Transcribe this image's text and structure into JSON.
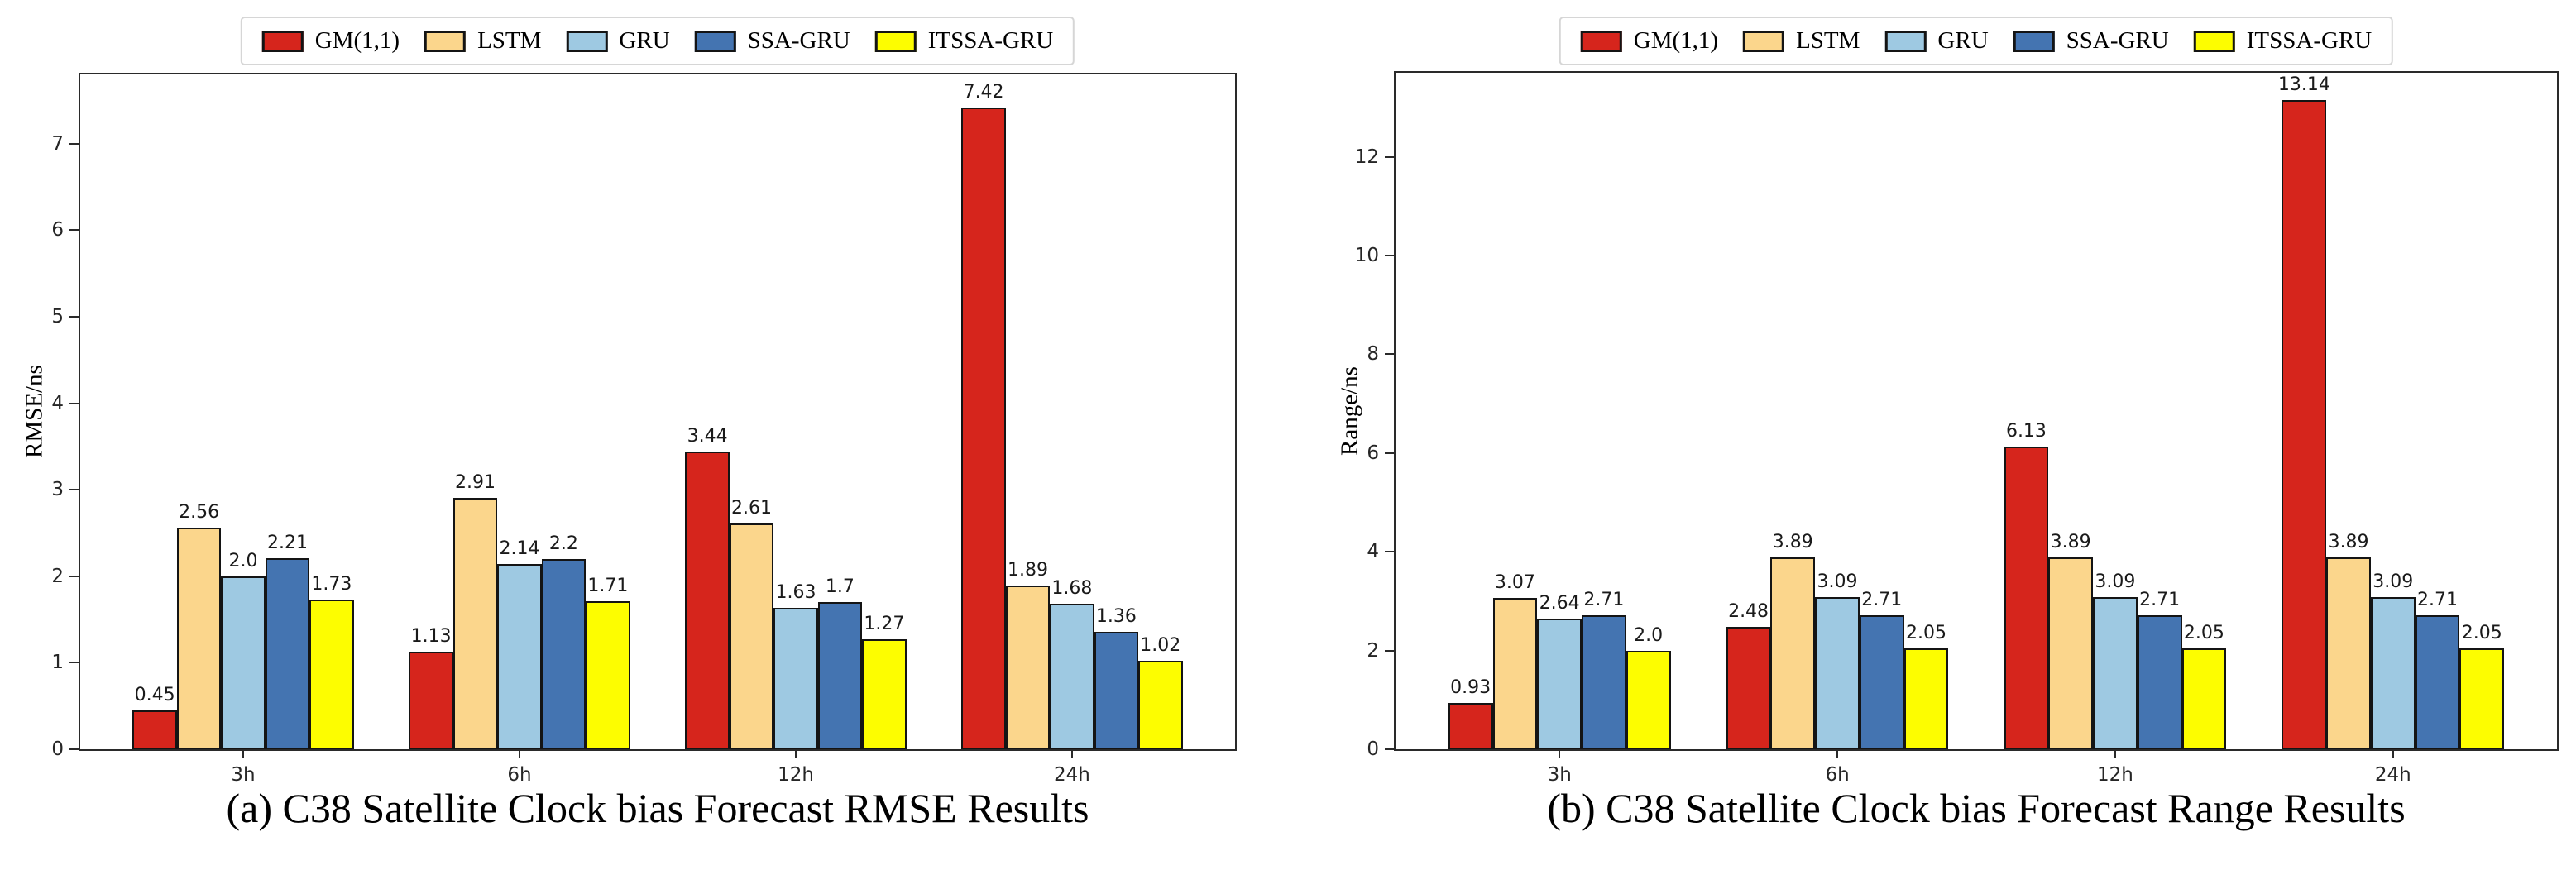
{
  "page": {
    "background": "#ffffff"
  },
  "chart_data": [
    {
      "type": "bar",
      "panel_label": "a",
      "caption": "(a) C38 Satellite Clock bias Forecast RMSE Results",
      "ylabel": "RMSE/ns",
      "xlabel": "",
      "categories": [
        "3h",
        "6h",
        "12h",
        "24h"
      ],
      "yticks": [
        0,
        1,
        2,
        3,
        4,
        5,
        6,
        7
      ],
      "ylim": [
        0,
        7.8
      ],
      "grid": false,
      "legend_position": "top center",
      "series": [
        {
          "name": "GM(1,1)",
          "color": "#d6251c",
          "values": [
            0.45,
            1.13,
            3.44,
            7.42
          ],
          "labels": [
            "0.45",
            "1.13",
            "3.44",
            "7.42"
          ]
        },
        {
          "name": "LSTM",
          "color": "#fbd68c",
          "values": [
            2.56,
            2.91,
            2.61,
            1.89
          ],
          "labels": [
            "2.56",
            "2.91",
            "2.61",
            "1.89"
          ]
        },
        {
          "name": "GRU",
          "color": "#9ec9e2",
          "values": [
            2.0,
            2.14,
            1.63,
            1.68
          ],
          "labels": [
            "2.0",
            "2.14",
            "1.63",
            "1.68"
          ]
        },
        {
          "name": "SSA-GRU",
          "color": "#4474b1",
          "values": [
            2.21,
            2.2,
            1.7,
            1.36
          ],
          "labels": [
            "2.21",
            "2.2",
            "1.7",
            "1.36"
          ]
        },
        {
          "name": "ITSSA-GRU",
          "color": "#fdfd00",
          "values": [
            1.73,
            1.71,
            1.27,
            1.02
          ],
          "labels": [
            "1.73",
            "1.71",
            "1.27",
            "1.02"
          ]
        }
      ]
    },
    {
      "type": "bar",
      "panel_label": "b",
      "caption": "(b) C38 Satellite Clock bias Forecast Range Results",
      "ylabel": "Range/ns",
      "xlabel": "",
      "categories": [
        "3h",
        "6h",
        "12h",
        "24h"
      ],
      "yticks": [
        0,
        2,
        4,
        6,
        8,
        10,
        12
      ],
      "ylim": [
        0,
        13.7
      ],
      "grid": false,
      "legend_position": "top center",
      "series": [
        {
          "name": "GM(1,1)",
          "color": "#d6251c",
          "values": [
            0.93,
            2.48,
            6.13,
            13.14
          ],
          "labels": [
            "0.93",
            "2.48",
            "6.13",
            "13.14"
          ]
        },
        {
          "name": "LSTM",
          "color": "#fbd68c",
          "values": [
            3.07,
            3.89,
            3.89,
            3.89
          ],
          "labels": [
            "3.07",
            "3.89",
            "3.89",
            "3.89"
          ]
        },
        {
          "name": "GRU",
          "color": "#9ec9e2",
          "values": [
            2.64,
            3.09,
            3.09,
            3.09
          ],
          "labels": [
            "2.64",
            "3.09",
            "3.09",
            "3.09"
          ]
        },
        {
          "name": "SSA-GRU",
          "color": "#4474b1",
          "values": [
            2.71,
            2.71,
            2.71,
            2.71
          ],
          "labels": [
            "2.71",
            "2.71",
            "2.71",
            "2.71"
          ]
        },
        {
          "name": "ITSSA-GRU",
          "color": "#fdfd00",
          "values": [
            2.0,
            2.05,
            2.05,
            2.05
          ],
          "labels": [
            "2.0",
            "2.05",
            "2.05",
            "2.05"
          ]
        }
      ]
    }
  ]
}
